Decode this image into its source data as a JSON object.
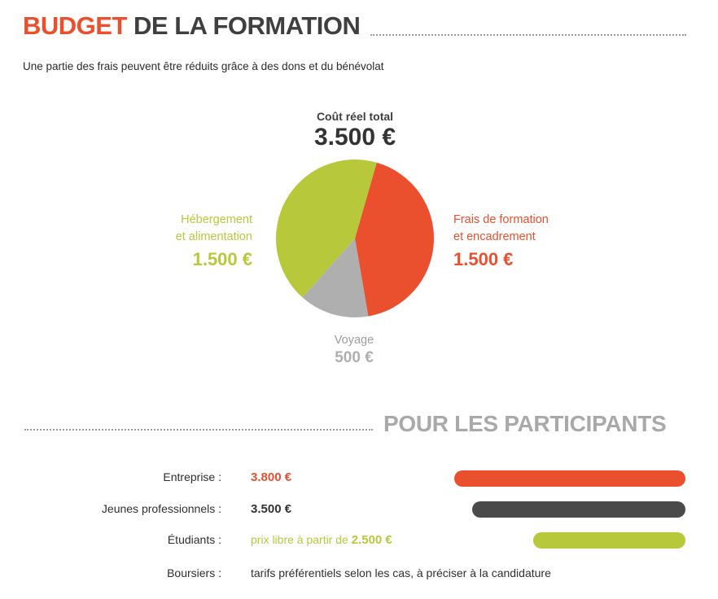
{
  "header": {
    "title_accent": "BUDGET",
    "title_rest": "DE LA FORMATION",
    "subtitle": "Une partie des frais peuvent être réduits grâce à des dons et du bénévolat"
  },
  "budget": {
    "total_label": "Coût réel total",
    "total_value": "3.500 €",
    "hebergement": {
      "line1": "Hébergement",
      "line2": "et alimentation",
      "value": "1.500 €"
    },
    "formation": {
      "line1": "Frais de formation",
      "line2": "et encadrement",
      "value": "1.500 €"
    },
    "voyage": {
      "label": "Voyage",
      "value": "500 €"
    }
  },
  "chart_data": {
    "type": "pie",
    "title": "Coût réel total",
    "total": 3500,
    "slices": [
      {
        "label": "Frais de formation et encadrement",
        "value": 1500,
        "color": "#ea4f2e"
      },
      {
        "label": "Voyage",
        "value": 500,
        "color": "#afafaf"
      },
      {
        "label": "Hébergement et alimentation",
        "value": 1500,
        "color": "#b7c93b"
      }
    ]
  },
  "participants": {
    "heading": "POUR LES PARTICIPANTS",
    "rows": [
      {
        "label": "Entreprise :",
        "value": "3.800 €",
        "color": "#ea4f2e",
        "bar_fraction": 1.0
      },
      {
        "label": "Jeunes professionnels :",
        "value": "3.500 €",
        "color": "#4a4a4a",
        "bar_fraction": 0.921
      },
      {
        "label": "Étudiants :",
        "prefix": "prix libre à partir de ",
        "value": "2.500 €",
        "color": "#b7c93b",
        "bar_fraction": 0.658
      },
      {
        "label": "Boursiers :",
        "value": "tarifs préférentiels selon les cas, à préciser à la candidature"
      }
    ]
  },
  "colors": {
    "accent": "#ea4f2e",
    "green": "#b7c93b",
    "grey": "#afafaf",
    "dark": "#4a4a4a"
  }
}
